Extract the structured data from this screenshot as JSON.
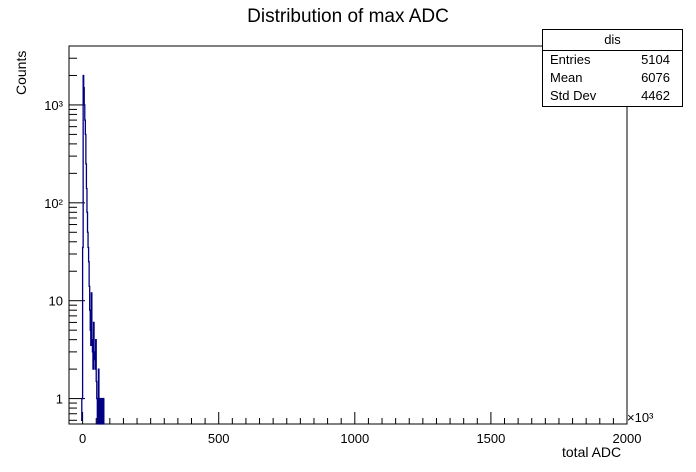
{
  "chart_data": {
    "type": "bar",
    "title": "Distribution of max ADC",
    "xlabel": "total ADC",
    "ylabel": "Counts",
    "x_multiplier_label": "×10³",
    "xlim": [
      -50,
      2000
    ],
    "ylim": [
      0.55,
      4000
    ],
    "y_scale": "log",
    "x_ticks": [
      0,
      500,
      1000,
      1500,
      2000
    ],
    "x_tick_labels": [
      "0",
      "500",
      "1000",
      "1500",
      "2000"
    ],
    "y_ticks": [
      1,
      10,
      100,
      1000
    ],
    "y_tick_labels": [
      "1",
      "10",
      "10²",
      "10³"
    ],
    "grid": false,
    "legend_position": "top-right",
    "stats_box": {
      "name": "dis",
      "rows": [
        {
          "label": "Entries",
          "value": "5104"
        },
        {
          "label": "Mean",
          "value": "6076"
        },
        {
          "label": "Std Dev",
          "value": "4462"
        }
      ]
    },
    "bins": {
      "x": [
        -6,
        -3,
        0,
        2,
        4,
        6,
        8,
        10,
        12,
        14,
        16,
        18,
        20,
        22,
        24,
        26,
        28,
        30,
        32,
        34,
        36,
        38,
        40,
        42,
        44,
        46,
        48,
        50,
        52,
        54,
        56,
        58,
        60,
        62,
        64,
        66,
        68,
        70,
        72,
        74,
        76,
        78,
        80
      ],
      "values": [
        0.6,
        1,
        35,
        2000,
        1500,
        1000,
        700,
        500,
        250,
        140,
        80,
        50,
        35,
        25,
        14,
        8,
        5,
        3.5,
        12,
        4,
        3,
        2,
        6,
        2.5,
        3,
        2,
        4,
        1.5,
        1,
        0,
        0,
        2,
        1,
        0,
        0,
        1,
        0,
        0,
        1,
        0,
        0,
        1,
        0
      ],
      "color": "#000080"
    }
  }
}
